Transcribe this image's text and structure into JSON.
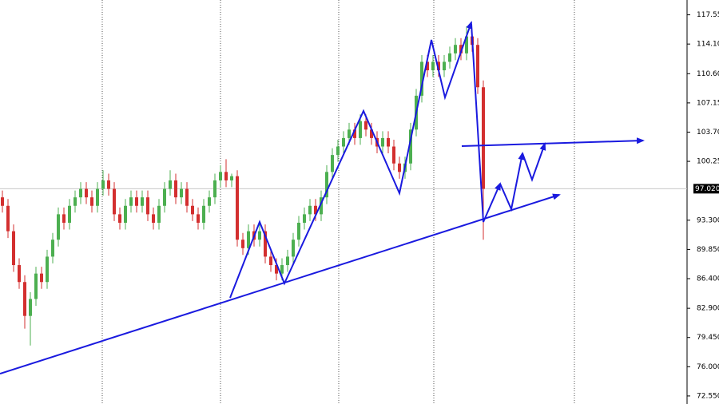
{
  "chart_data": {
    "type": "candlestick",
    "ohlc": [
      [
        96,
        96.8,
        94.2,
        95
      ],
      [
        95,
        95.8,
        91.2,
        92
      ],
      [
        92,
        92.8,
        87.2,
        88
      ],
      [
        88,
        88.8,
        85.2,
        86
      ],
      [
        86,
        86.8,
        80.5,
        82
      ],
      [
        82,
        84.8,
        78.5,
        84
      ],
      [
        84,
        87.8,
        83.2,
        87
      ],
      [
        87,
        87.8,
        85.2,
        86
      ],
      [
        86,
        89.8,
        85.2,
        89
      ],
      [
        89,
        91.8,
        88.2,
        91
      ],
      [
        91,
        94.8,
        90.2,
        94
      ],
      [
        94,
        94.8,
        92.2,
        93
      ],
      [
        93,
        95.8,
        92.2,
        95
      ],
      [
        95,
        96.8,
        94.2,
        96
      ],
      [
        96,
        97.8,
        95.2,
        97
      ],
      [
        97,
        97.8,
        95.2,
        96
      ],
      [
        96,
        96.8,
        94.2,
        95
      ],
      [
        95,
        97.8,
        94.2,
        97
      ],
      [
        97,
        99.2,
        96.2,
        98
      ],
      [
        98,
        98.8,
        96.2,
        97
      ],
      [
        97,
        97.8,
        93.2,
        94
      ],
      [
        94,
        94.8,
        92.2,
        93
      ],
      [
        93,
        95.8,
        92.2,
        95
      ],
      [
        95,
        96.8,
        94.2,
        96
      ],
      [
        96,
        96.8,
        94.2,
        95
      ],
      [
        95,
        96.8,
        94.2,
        96
      ],
      [
        96,
        96.8,
        93.2,
        94
      ],
      [
        94,
        94.8,
        92.2,
        93
      ],
      [
        93,
        95.8,
        92.2,
        95
      ],
      [
        95,
        97.8,
        94.2,
        97
      ],
      [
        97,
        99.2,
        96.2,
        98
      ],
      [
        98,
        98.8,
        95.2,
        96
      ],
      [
        96,
        97.8,
        95.2,
        97
      ],
      [
        97,
        97.8,
        94.2,
        95
      ],
      [
        95,
        95.8,
        93.2,
        94
      ],
      [
        94,
        94.8,
        92.2,
        93
      ],
      [
        93,
        95.8,
        92.2,
        95
      ],
      [
        95,
        96.8,
        94.2,
        96
      ],
      [
        96,
        98.8,
        95.2,
        98
      ],
      [
        98,
        99.8,
        97.2,
        99
      ],
      [
        99,
        100.5,
        97.2,
        98
      ],
      [
        98,
        98.8,
        97.2,
        98.5
      ],
      [
        98.5,
        99.2,
        90.2,
        91
      ],
      [
        91,
        91.8,
        89.2,
        90
      ],
      [
        90,
        92.8,
        89.2,
        92
      ],
      [
        92,
        92.8,
        90.2,
        91
      ],
      [
        91,
        92.8,
        90.2,
        92
      ],
      [
        92,
        92.8,
        88.2,
        89
      ],
      [
        89,
        89.8,
        87.2,
        88
      ],
      [
        88,
        88.8,
        86.2,
        87
      ],
      [
        87,
        88.8,
        86.2,
        88
      ],
      [
        88,
        89.8,
        87.2,
        89
      ],
      [
        89,
        91.8,
        88.2,
        91
      ],
      [
        91,
        93.8,
        90.2,
        93
      ],
      [
        93,
        94.8,
        92.2,
        94
      ],
      [
        94,
        95.8,
        93.2,
        95
      ],
      [
        95,
        95.8,
        93.2,
        94
      ],
      [
        94,
        96.8,
        93.2,
        96
      ],
      [
        96,
        99.8,
        95.2,
        99
      ],
      [
        99,
        101.8,
        98.2,
        101
      ],
      [
        101,
        102.8,
        100.2,
        102
      ],
      [
        102,
        103.8,
        101.2,
        103
      ],
      [
        103,
        104.8,
        102.2,
        104
      ],
      [
        104,
        104.8,
        102.2,
        103
      ],
      [
        103,
        105.8,
        102.2,
        105
      ],
      [
        105,
        105.8,
        103.2,
        104
      ],
      [
        104,
        104.8,
        102.2,
        103
      ],
      [
        103,
        103.8,
        101.2,
        102
      ],
      [
        102,
        103.8,
        101.2,
        103
      ],
      [
        103,
        103.8,
        101.2,
        102
      ],
      [
        102,
        102.8,
        99.2,
        100
      ],
      [
        100,
        100.8,
        98.2,
        99
      ],
      [
        99,
        100.8,
        98.2,
        100
      ],
      [
        100,
        104.8,
        99.2,
        104
      ],
      [
        104,
        108.8,
        103.2,
        108
      ],
      [
        108,
        112.8,
        107.2,
        112
      ],
      [
        112,
        112.8,
        110.2,
        111
      ],
      [
        111,
        112.8,
        110.2,
        112
      ],
      [
        112,
        112.8,
        110.2,
        111
      ],
      [
        111,
        112.8,
        110.2,
        112
      ],
      [
        112,
        113.8,
        111.2,
        113
      ],
      [
        113,
        114.8,
        112.2,
        114
      ],
      [
        114,
        114.8,
        112.2,
        113
      ],
      [
        113,
        116.2,
        112.2,
        115
      ],
      [
        115,
        115.8,
        113.2,
        114
      ],
      [
        114,
        114.8,
        108.2,
        109
      ],
      [
        109,
        109.8,
        91,
        97
      ]
    ],
    "up_color": "#4caf50",
    "down_color": "#d32f2f",
    "ylim": [
      71.6,
      119.3
    ],
    "yticks": [
      {
        "value": 117.55,
        "label": "117.550"
      },
      {
        "value": 114.1,
        "label": "114.100"
      },
      {
        "value": 110.6,
        "label": "110.600"
      },
      {
        "value": 107.15,
        "label": "107.150"
      },
      {
        "value": 103.7,
        "label": "103.700"
      },
      {
        "value": 100.25,
        "label": "100.250"
      },
      {
        "value": 93.3,
        "label": "93.300"
      },
      {
        "value": 89.85,
        "label": "89.850"
      },
      {
        "value": 86.4,
        "label": "86.400"
      },
      {
        "value": 82.9,
        "label": "82.900"
      },
      {
        "value": 79.45,
        "label": "79.450"
      },
      {
        "value": 76.0,
        "label": "76.000"
      },
      {
        "value": 72.55,
        "label": "72.550"
      }
    ],
    "current_price": {
      "value": 97.02,
      "label": "97.020"
    }
  }
}
